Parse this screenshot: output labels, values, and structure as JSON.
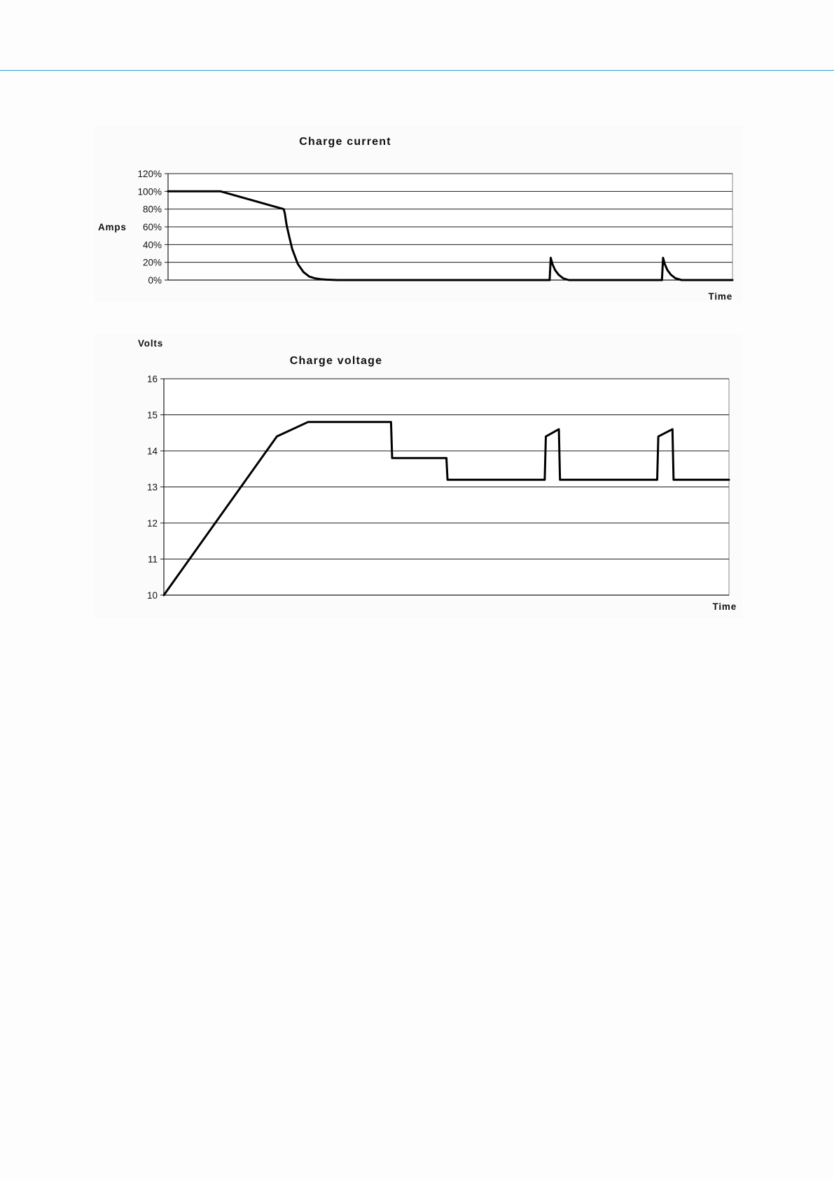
{
  "page": {
    "accent_color": "#2aa3d6"
  },
  "chart_data": [
    {
      "type": "line",
      "title": "Charge current",
      "ylabel": "Amps",
      "xlabel": "Time",
      "ylim": [
        0,
        120
      ],
      "xlim": [
        0,
        100
      ],
      "y_ticks": [
        {
          "value": 0,
          "label": "0%"
        },
        {
          "value": 20,
          "label": "20%"
        },
        {
          "value": 40,
          "label": "40%"
        },
        {
          "value": 60,
          "label": "60%"
        },
        {
          "value": 80,
          "label": "80%"
        },
        {
          "value": 100,
          "label": "100%"
        },
        {
          "value": 120,
          "label": "120%"
        }
      ],
      "grid": true,
      "line_color": "#000000",
      "series": [
        {
          "x": [
            0,
            9.3,
            20.5,
            20.7,
            21.0,
            21.5,
            22.0,
            23.0,
            24.0,
            25.0,
            26.0,
            27.0,
            28.0,
            30.0,
            67.6,
            67.8,
            68.1,
            68.6,
            69.2,
            70.0,
            71.0,
            87.5,
            87.7,
            88.0,
            88.5,
            89.1,
            89.9,
            91.0,
            100
          ],
          "y": [
            100,
            100,
            80,
            75,
            62,
            48,
            35,
            18,
            9,
            4,
            2,
            1,
            0.5,
            0,
            0,
            25,
            18,
            11,
            6,
            2,
            0,
            0,
            25,
            18,
            11,
            6,
            2,
            0,
            0
          ]
        }
      ]
    },
    {
      "type": "line",
      "title": "Charge voltage",
      "ylabel": "Volts",
      "xlabel": "Time",
      "ylim": [
        10,
        16
      ],
      "xlim": [
        0,
        100
      ],
      "y_ticks": [
        {
          "value": 10,
          "label": "10"
        },
        {
          "value": 11,
          "label": "11"
        },
        {
          "value": 12,
          "label": "12"
        },
        {
          "value": 13,
          "label": "13"
        },
        {
          "value": 14,
          "label": "14"
        },
        {
          "value": 15,
          "label": "15"
        },
        {
          "value": 16,
          "label": "16"
        }
      ],
      "grid": true,
      "line_color": "#000000",
      "series": [
        {
          "x": [
            0,
            20.0,
            25.5,
            40.2,
            40.4,
            50.0,
            50.2,
            67.4,
            67.6,
            69.9,
            70.1,
            87.3,
            87.5,
            90.0,
            90.2,
            100
          ],
          "y": [
            10,
            14.4,
            14.8,
            14.8,
            13.8,
            13.8,
            13.2,
            13.2,
            14.4,
            14.6,
            13.2,
            13.2,
            14.4,
            14.6,
            13.2,
            13.2
          ]
        }
      ]
    }
  ]
}
